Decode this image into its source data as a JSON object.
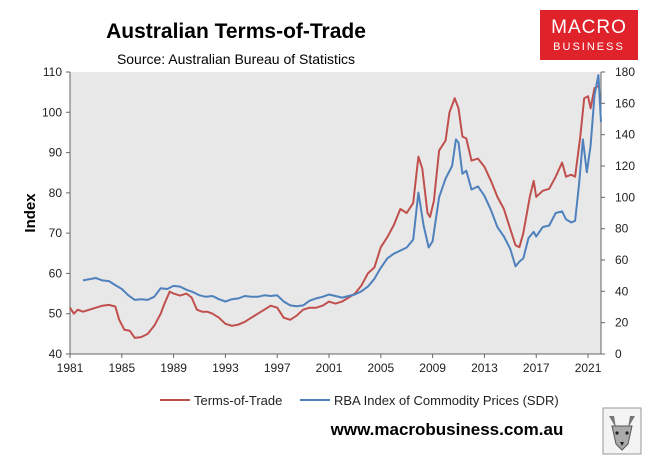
{
  "chart_data": {
    "type": "line",
    "title": "Australian Terms-of-Trade",
    "subtitle": "Source: Australian Bureau of Statistics",
    "ylabel": "Index",
    "ylim": [
      40,
      110
    ],
    "y_ticks": [
      40,
      50,
      60,
      70,
      80,
      90,
      100,
      110
    ],
    "y2lim": [
      0,
      180
    ],
    "y2_ticks": [
      0,
      20,
      40,
      60,
      80,
      100,
      120,
      140,
      160,
      180
    ],
    "xlim": [
      1981,
      2022
    ],
    "x_ticks": [
      "1981",
      "1985",
      "1989",
      "1993",
      "1997",
      "2001",
      "2005",
      "2009",
      "2013",
      "2017",
      "2021"
    ],
    "series": [
      {
        "name": "Terms-of-Trade",
        "axis": "left",
        "color": "#c0504d",
        "points": [
          [
            1981.0,
            51.5
          ],
          [
            1981.3,
            50.0
          ],
          [
            1981.6,
            51.0
          ],
          [
            1982.0,
            50.5
          ],
          [
            1982.5,
            51.0
          ],
          [
            1983.0,
            51.5
          ],
          [
            1983.5,
            52.0
          ],
          [
            1984.0,
            52.2
          ],
          [
            1984.5,
            51.8
          ],
          [
            1984.8,
            48.5
          ],
          [
            1985.2,
            46.0
          ],
          [
            1985.6,
            45.8
          ],
          [
            1986.0,
            44.0
          ],
          [
            1986.5,
            44.2
          ],
          [
            1987.0,
            45.0
          ],
          [
            1987.5,
            47.0
          ],
          [
            1988.0,
            50.0
          ],
          [
            1988.3,
            52.5
          ],
          [
            1988.7,
            55.5
          ],
          [
            1989.0,
            55.0
          ],
          [
            1989.5,
            54.5
          ],
          [
            1990.0,
            55.0
          ],
          [
            1990.4,
            54.0
          ],
          [
            1990.8,
            51.0
          ],
          [
            1991.2,
            50.5
          ],
          [
            1991.6,
            50.5
          ],
          [
            1992.0,
            50.0
          ],
          [
            1992.5,
            49.0
          ],
          [
            1993.0,
            47.5
          ],
          [
            1993.5,
            47.0
          ],
          [
            1994.0,
            47.3
          ],
          [
            1994.5,
            48.0
          ],
          [
            1995.0,
            49.0
          ],
          [
            1995.5,
            50.0
          ],
          [
            1996.0,
            51.0
          ],
          [
            1996.5,
            52.0
          ],
          [
            1997.0,
            51.5
          ],
          [
            1997.5,
            49.0
          ],
          [
            1998.0,
            48.5
          ],
          [
            1998.5,
            49.5
          ],
          [
            1999.0,
            51.0
          ],
          [
            1999.5,
            51.5
          ],
          [
            2000.0,
            51.5
          ],
          [
            2000.5,
            52.0
          ],
          [
            2001.0,
            53.0
          ],
          [
            2001.5,
            52.5
          ],
          [
            2002.0,
            53.0
          ],
          [
            2002.5,
            54.0
          ],
          [
            2003.0,
            55.0
          ],
          [
            2003.5,
            57.0
          ],
          [
            2004.0,
            60.0
          ],
          [
            2004.5,
            61.5
          ],
          [
            2005.0,
            66.5
          ],
          [
            2005.5,
            69.0
          ],
          [
            2006.0,
            72.0
          ],
          [
            2006.5,
            76.0
          ],
          [
            2007.0,
            75.0
          ],
          [
            2007.5,
            77.5
          ],
          [
            2007.9,
            89.0
          ],
          [
            2008.2,
            86.0
          ],
          [
            2008.6,
            75.0
          ],
          [
            2008.8,
            74.0
          ],
          [
            2009.1,
            78.0
          ],
          [
            2009.5,
            90.5
          ],
          [
            2010.0,
            93.0
          ],
          [
            2010.3,
            100.0
          ],
          [
            2010.7,
            103.5
          ],
          [
            2011.0,
            101.0
          ],
          [
            2011.3,
            94.0
          ],
          [
            2011.6,
            93.5
          ],
          [
            2012.0,
            88.0
          ],
          [
            2012.5,
            88.5
          ],
          [
            2013.0,
            86.5
          ],
          [
            2013.5,
            83.0
          ],
          [
            2014.0,
            79.0
          ],
          [
            2014.5,
            76.0
          ],
          [
            2015.0,
            71.0
          ],
          [
            2015.4,
            67.0
          ],
          [
            2015.7,
            66.5
          ],
          [
            2016.0,
            70.0
          ],
          [
            2016.5,
            79.0
          ],
          [
            2016.8,
            83.0
          ],
          [
            2017.0,
            79.0
          ],
          [
            2017.5,
            80.5
          ],
          [
            2018.0,
            81.0
          ],
          [
            2018.5,
            84.0
          ],
          [
            2019.0,
            87.5
          ],
          [
            2019.3,
            84.0
          ],
          [
            2019.7,
            84.5
          ],
          [
            2020.0,
            84.0
          ],
          [
            2020.4,
            94.0
          ],
          [
            2020.7,
            103.5
          ],
          [
            2021.0,
            104.0
          ],
          [
            2021.2,
            101.0
          ],
          [
            2021.5,
            106.0
          ],
          [
            2021.8,
            106.5
          ]
        ]
      },
      {
        "name": "RBA Index of Commodity Prices (SDR)",
        "axis": "right",
        "color": "#4f81bd",
        "points": [
          [
            1982.0,
            47.0
          ],
          [
            1983.0,
            48.5
          ],
          [
            1983.5,
            47.0
          ],
          [
            1984.0,
            46.5
          ],
          [
            1984.5,
            44.0
          ],
          [
            1985.0,
            41.5
          ],
          [
            1985.5,
            37.5
          ],
          [
            1986.0,
            34.5
          ],
          [
            1986.5,
            35.0
          ],
          [
            1987.0,
            34.5
          ],
          [
            1987.5,
            36.5
          ],
          [
            1988.0,
            42.0
          ],
          [
            1988.5,
            41.5
          ],
          [
            1989.0,
            43.5
          ],
          [
            1989.5,
            43.0
          ],
          [
            1990.0,
            41.0
          ],
          [
            1990.5,
            39.5
          ],
          [
            1991.0,
            37.5
          ],
          [
            1991.5,
            36.5
          ],
          [
            1992.0,
            37.0
          ],
          [
            1992.5,
            35.0
          ],
          [
            1993.0,
            33.5
          ],
          [
            1993.5,
            35.0
          ],
          [
            1994.0,
            35.5
          ],
          [
            1994.5,
            37.0
          ],
          [
            1995.0,
            36.5
          ],
          [
            1995.5,
            36.5
          ],
          [
            1996.0,
            37.5
          ],
          [
            1996.5,
            37.0
          ],
          [
            1997.0,
            37.5
          ],
          [
            1997.5,
            33.5
          ],
          [
            1998.0,
            31.0
          ],
          [
            1998.5,
            30.5
          ],
          [
            1999.0,
            31.0
          ],
          [
            1999.5,
            34.0
          ],
          [
            2000.0,
            35.5
          ],
          [
            2000.5,
            36.5
          ],
          [
            2001.0,
            38.0
          ],
          [
            2001.5,
            37.0
          ],
          [
            2002.0,
            36.0
          ],
          [
            2002.5,
            37.0
          ],
          [
            2003.0,
            38.0
          ],
          [
            2003.5,
            40.0
          ],
          [
            2004.0,
            43.0
          ],
          [
            2004.5,
            48.0
          ],
          [
            2005.0,
            55.0
          ],
          [
            2005.5,
            61.0
          ],
          [
            2006.0,
            64.0
          ],
          [
            2006.5,
            66.0
          ],
          [
            2007.0,
            68.0
          ],
          [
            2007.5,
            73.0
          ],
          [
            2007.9,
            103.0
          ],
          [
            2008.3,
            82.0
          ],
          [
            2008.7,
            68.0
          ],
          [
            2009.0,
            72.0
          ],
          [
            2009.5,
            100.0
          ],
          [
            2010.0,
            112.0
          ],
          [
            2010.5,
            120.0
          ],
          [
            2010.8,
            137.0
          ],
          [
            2011.0,
            135.0
          ],
          [
            2011.3,
            115.0
          ],
          [
            2011.6,
            117.0
          ],
          [
            2012.0,
            105.0
          ],
          [
            2012.5,
            107.0
          ],
          [
            2013.0,
            101.0
          ],
          [
            2013.5,
            92.0
          ],
          [
            2014.0,
            81.0
          ],
          [
            2014.5,
            75.0
          ],
          [
            2015.0,
            67.0
          ],
          [
            2015.4,
            56.0
          ],
          [
            2015.7,
            59.0
          ],
          [
            2016.0,
            61.0
          ],
          [
            2016.4,
            74.0
          ],
          [
            2016.8,
            78.0
          ],
          [
            2017.0,
            75.0
          ],
          [
            2017.5,
            81.0
          ],
          [
            2018.0,
            82.0
          ],
          [
            2018.5,
            90.0
          ],
          [
            2019.0,
            91.0
          ],
          [
            2019.3,
            86.0
          ],
          [
            2019.7,
            84.0
          ],
          [
            2020.0,
            85.0
          ],
          [
            2020.3,
            108.0
          ],
          [
            2020.6,
            137.0
          ],
          [
            2020.9,
            116.0
          ],
          [
            2021.2,
            133.0
          ],
          [
            2021.5,
            165.0
          ],
          [
            2021.8,
            178.0
          ],
          [
            2022.0,
            148.0
          ]
        ]
      }
    ],
    "legend_position": "bottom",
    "grid": false
  },
  "branding": {
    "logo_line1": "MACRO",
    "logo_line2": "BUSINESS",
    "logo_color": "#e0222b",
    "website": "www.macrobusiness.com.au"
  }
}
